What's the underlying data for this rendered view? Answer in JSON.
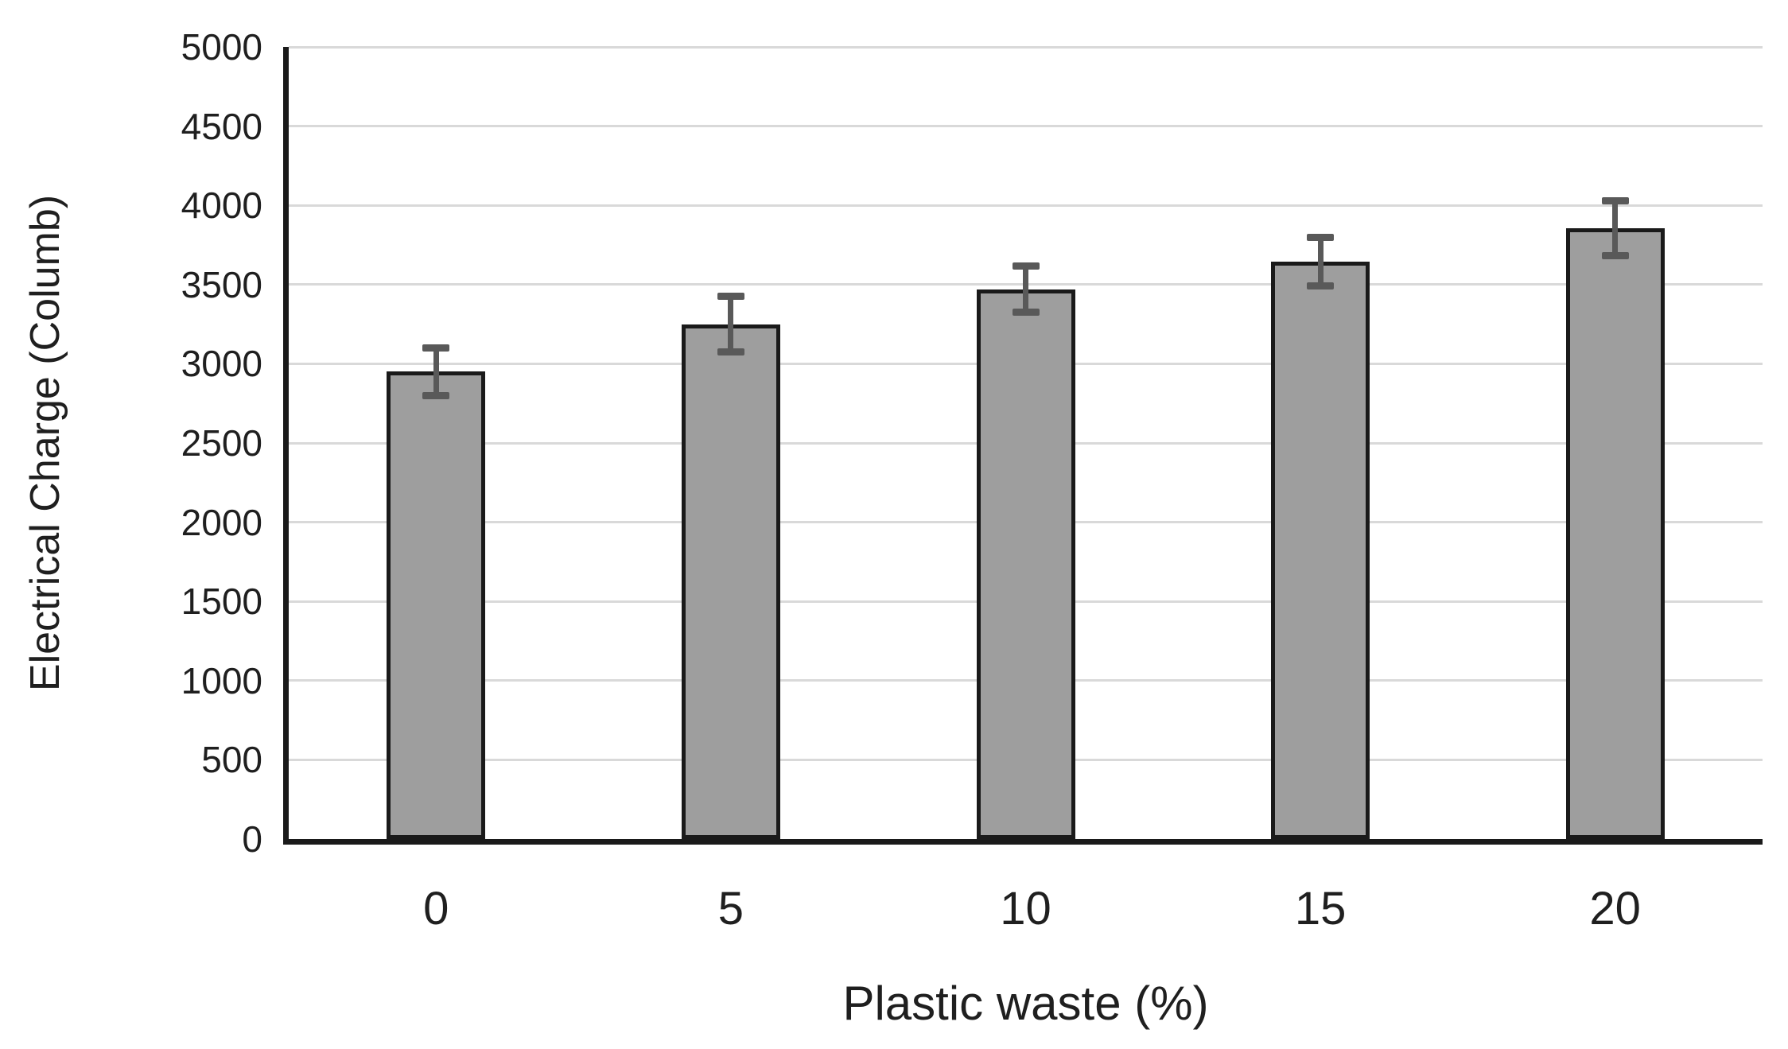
{
  "chart_data": {
    "type": "bar",
    "title": "",
    "xlabel": "Plastic waste (%)",
    "ylabel": "Electrical Charge (Columb)",
    "categories": [
      "0",
      "5",
      "10",
      "15",
      "20"
    ],
    "values": [
      2950,
      3250,
      3470,
      3645,
      3855
    ],
    "error_bars": [
      150,
      175,
      145,
      155,
      175
    ],
    "ylim": [
      0,
      5000
    ],
    "yticks": [
      0,
      500,
      1000,
      1500,
      2000,
      2500,
      3000,
      3500,
      4000,
      4500,
      5000
    ],
    "grid": "horizontal",
    "legend": "none",
    "colors": {
      "bar_fill": "#9e9e9e",
      "bar_border": "#1a1a1a",
      "error_bar": "#595959",
      "gridline": "#d9d9d9",
      "axis": "#1a1a1a",
      "text": "#1f1f1f",
      "background": "#ffffff"
    }
  }
}
